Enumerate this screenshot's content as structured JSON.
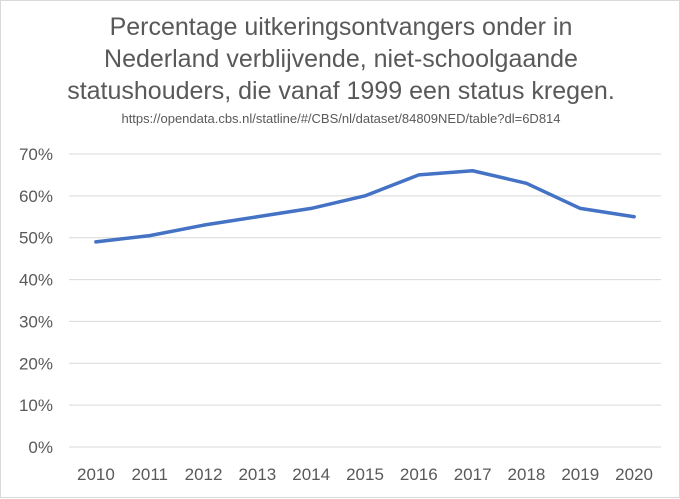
{
  "chart_data": {
    "type": "line",
    "title": "Percentage uitkeringsontvangers onder in\nNederland verblijvende, niet-schoolgaande\nstatushouders, die vanaf 1999 een status kregen.",
    "subtitle": "https://opendata.cbs.nl/statline/#/CBS/nl/dataset/84809NED/table?dl=6D814",
    "categories": [
      "2010",
      "2011",
      "2012",
      "2013",
      "2014",
      "2015",
      "2016",
      "2017",
      "2018",
      "2019",
      "2020"
    ],
    "series": [
      {
        "values": [
          49,
          50.5,
          53,
          55,
          57,
          60,
          65,
          66,
          63,
          57,
          55
        ]
      }
    ],
    "ylim": [
      0,
      70
    ],
    "y_ticks": [
      "0%",
      "10%",
      "20%",
      "30%",
      "40%",
      "50%",
      "60%",
      "70%"
    ],
    "xlabel": "",
    "ylabel": "",
    "grid": true,
    "legend": "none",
    "line_color": "#4472c4",
    "grid_color": "#d9d9d9"
  }
}
